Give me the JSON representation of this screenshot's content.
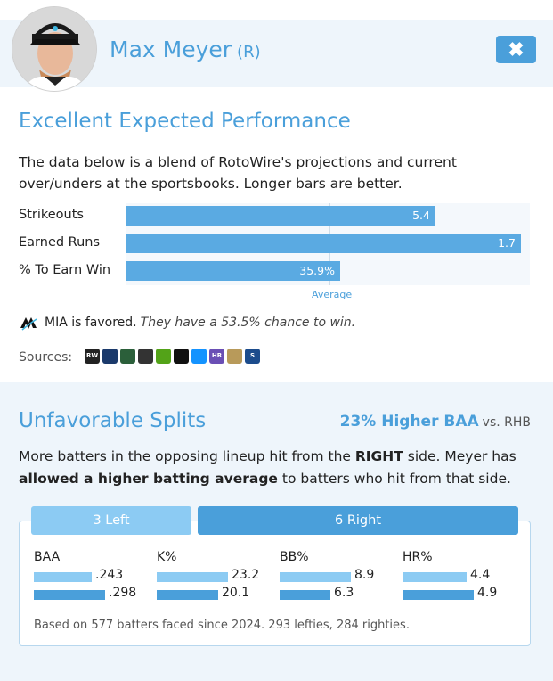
{
  "player": {
    "name": "Max Meyer",
    "hand": "(R)"
  },
  "close_label": "✖",
  "performance": {
    "title": "Excellent Expected Performance",
    "description": "The data below is a blend of RotoWire's projections and current over/unders at the sportsbooks. Longer bars are better.",
    "stats": [
      {
        "label": "Strikeouts",
        "value": "5.4",
        "level": 0.765
      },
      {
        "label": "Earned Runs",
        "value": "1.7",
        "level": 0.978
      },
      {
        "label": "% To Earn Win",
        "value": "35.9%",
        "level": 0.529
      }
    ],
    "average_label": "Average"
  },
  "favored": {
    "team_text": "MIA is favored.",
    "chance_text": "They have a 53.5% chance to win."
  },
  "sources": {
    "label": "Sources:",
    "icons": [
      {
        "name": "rotowire-icon",
        "text": "RW",
        "color": "#222222"
      },
      {
        "name": "sportsbook-icon-2",
        "text": "",
        "color": "#1b3a6b"
      },
      {
        "name": "sportsbook-icon-3",
        "text": "",
        "color": "#2b5f3a"
      },
      {
        "name": "sportsbook-icon-4",
        "text": "",
        "color": "#333333"
      },
      {
        "name": "draftkings-icon",
        "text": "",
        "color": "#53a318"
      },
      {
        "name": "sportsbook-icon-6",
        "text": "",
        "color": "#111111"
      },
      {
        "name": "fanduel-icon",
        "text": "",
        "color": "#1493ff"
      },
      {
        "name": "hardrock-icon",
        "text": "HR",
        "color": "#6a4fb5"
      },
      {
        "name": "caesars-icon",
        "text": "",
        "color": "#b89a5a"
      },
      {
        "name": "sportsbook-icon-10",
        "text": "S",
        "color": "#1c4c8c"
      }
    ]
  },
  "splits": {
    "title": "Unfavorable Splits",
    "baa_pct": "23% Higher BAA",
    "baa_vs": "vs. RHB",
    "desc_part1": "More batters in the opposing lineup hit from the ",
    "desc_bold1": "RIGHT",
    "desc_part2": " side. Meyer has ",
    "desc_bold2": "allowed a higher batting average",
    "desc_part3": " to batters who hit from that side.",
    "tab_left": "3 Left",
    "tab_right": "6 Right",
    "columns": [
      {
        "head": "BAA",
        "left": ".243",
        "right": ".298",
        "left_level": 0.815,
        "right_level": 1.0
      },
      {
        "head": "K%",
        "left": "23.2",
        "right": "20.1",
        "left_level": 1.0,
        "right_level": 0.866
      },
      {
        "head": "BB%",
        "left": "8.9",
        "right": "6.3",
        "left_level": 1.0,
        "right_level": 0.708
      },
      {
        "head": "HR%",
        "left": "4.4",
        "right": "4.9",
        "left_level": 0.898,
        "right_level": 1.0
      }
    ],
    "footnote": "Based on 577 batters faced since 2024. 293 lefties, 284 righties."
  }
}
